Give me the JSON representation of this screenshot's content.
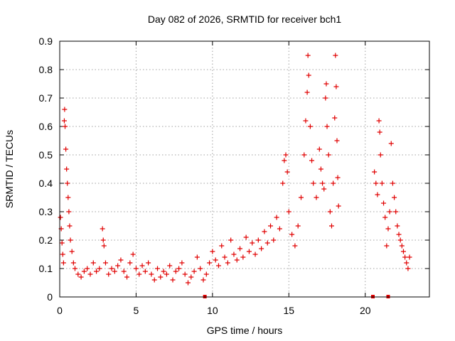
{
  "chart_data": {
    "type": "scatter",
    "title": "Day 082 of 2026, SRMTID for receiver bch1",
    "xlabel": "GPS time / hours",
    "ylabel": "SRMTID / TECUs",
    "xlim": [
      0,
      24.2
    ],
    "ylim": [
      0,
      0.9
    ],
    "xticks": [
      0,
      5,
      10,
      15,
      20
    ],
    "yticks": [
      0,
      0.1,
      0.2,
      0.3,
      0.4,
      0.5,
      0.6,
      0.7,
      0.8,
      0.9
    ],
    "xtick_labels": [
      "0",
      "5",
      "10",
      "15",
      "20"
    ],
    "ytick_labels": [
      "0",
      "0.1",
      "0.2",
      "0.3",
      "0.4",
      "0.5",
      "0.6",
      "0.7",
      "0.8",
      "0.9"
    ],
    "grid": true,
    "marker": "+",
    "color": "#e00000",
    "series": [
      {
        "name": "bch1",
        "points": [
          [
            0.05,
            0.28
          ],
          [
            0.1,
            0.24
          ],
          [
            0.15,
            0.19
          ],
          [
            0.2,
            0.15
          ],
          [
            0.25,
            0.12
          ],
          [
            0.3,
            0.62
          ],
          [
            0.32,
            0.66
          ],
          [
            0.35,
            0.6
          ],
          [
            0.4,
            0.52
          ],
          [
            0.45,
            0.45
          ],
          [
            0.5,
            0.4
          ],
          [
            0.55,
            0.35
          ],
          [
            0.6,
            0.3
          ],
          [
            0.65,
            0.25
          ],
          [
            0.7,
            0.2
          ],
          [
            0.8,
            0.16
          ],
          [
            0.9,
            0.12
          ],
          [
            1.0,
            0.1
          ],
          [
            1.2,
            0.08
          ],
          [
            1.4,
            0.07
          ],
          [
            1.6,
            0.09
          ],
          [
            1.8,
            0.1
          ],
          [
            2.0,
            0.08
          ],
          [
            2.2,
            0.12
          ],
          [
            2.4,
            0.09
          ],
          [
            2.6,
            0.1
          ],
          [
            2.8,
            0.24
          ],
          [
            2.85,
            0.2
          ],
          [
            2.9,
            0.18
          ],
          [
            3.0,
            0.12
          ],
          [
            3.2,
            0.08
          ],
          [
            3.4,
            0.1
          ],
          [
            3.6,
            0.09
          ],
          [
            3.8,
            0.11
          ],
          [
            4.0,
            0.13
          ],
          [
            4.2,
            0.09
          ],
          [
            4.4,
            0.07
          ],
          [
            4.6,
            0.12
          ],
          [
            4.8,
            0.15
          ],
          [
            5.0,
            0.1
          ],
          [
            5.2,
            0.08
          ],
          [
            5.4,
            0.11
          ],
          [
            5.6,
            0.09
          ],
          [
            5.8,
            0.12
          ],
          [
            6.0,
            0.08
          ],
          [
            6.2,
            0.06
          ],
          [
            6.4,
            0.1
          ],
          [
            6.6,
            0.07
          ],
          [
            6.8,
            0.09
          ],
          [
            7.0,
            0.08
          ],
          [
            7.2,
            0.11
          ],
          [
            7.4,
            0.06
          ],
          [
            7.6,
            0.09
          ],
          [
            7.8,
            0.1
          ],
          [
            8.0,
            0.12
          ],
          [
            8.2,
            0.08
          ],
          [
            8.4,
            0.05
          ],
          [
            8.6,
            0.07
          ],
          [
            8.8,
            0.09
          ],
          [
            9.0,
            0.14
          ],
          [
            9.2,
            0.1
          ],
          [
            9.4,
            0.06
          ],
          [
            9.6,
            0.08
          ],
          [
            9.8,
            0.12
          ],
          [
            10.0,
            0.16
          ],
          [
            10.2,
            0.13
          ],
          [
            10.4,
            0.11
          ],
          [
            10.6,
            0.18
          ],
          [
            10.8,
            0.14
          ],
          [
            11.0,
            0.12
          ],
          [
            11.2,
            0.2
          ],
          [
            11.4,
            0.15
          ],
          [
            11.6,
            0.13
          ],
          [
            11.8,
            0.17
          ],
          [
            12.0,
            0.14
          ],
          [
            12.2,
            0.21
          ],
          [
            12.4,
            0.16
          ],
          [
            12.6,
            0.19
          ],
          [
            12.8,
            0.15
          ],
          [
            13.0,
            0.2
          ],
          [
            13.2,
            0.17
          ],
          [
            13.4,
            0.23
          ],
          [
            13.6,
            0.19
          ],
          [
            13.8,
            0.25
          ],
          [
            14.0,
            0.2
          ],
          [
            14.2,
            0.28
          ],
          [
            14.4,
            0.24
          ],
          [
            14.6,
            0.4
          ],
          [
            14.7,
            0.48
          ],
          [
            14.8,
            0.5
          ],
          [
            14.9,
            0.44
          ],
          [
            15.0,
            0.3
          ],
          [
            15.2,
            0.22
          ],
          [
            15.4,
            0.18
          ],
          [
            15.6,
            0.25
          ],
          [
            15.8,
            0.35
          ],
          [
            16.0,
            0.5
          ],
          [
            16.1,
            0.62
          ],
          [
            16.2,
            0.72
          ],
          [
            16.25,
            0.85
          ],
          [
            16.3,
            0.78
          ],
          [
            16.4,
            0.6
          ],
          [
            16.5,
            0.48
          ],
          [
            16.6,
            0.4
          ],
          [
            16.8,
            0.35
          ],
          [
            17.0,
            0.52
          ],
          [
            17.1,
            0.45
          ],
          [
            17.2,
            0.4
          ],
          [
            17.3,
            0.38
          ],
          [
            17.4,
            0.7
          ],
          [
            17.45,
            0.75
          ],
          [
            17.5,
            0.6
          ],
          [
            17.6,
            0.5
          ],
          [
            17.7,
            0.3
          ],
          [
            17.8,
            0.25
          ],
          [
            17.9,
            0.4
          ],
          [
            18.0,
            0.63
          ],
          [
            18.05,
            0.85
          ],
          [
            18.1,
            0.74
          ],
          [
            18.15,
            0.55
          ],
          [
            18.2,
            0.42
          ],
          [
            18.25,
            0.32
          ],
          [
            20.6,
            0.44
          ],
          [
            20.7,
            0.4
          ],
          [
            20.8,
            0.36
          ],
          [
            20.9,
            0.62
          ],
          [
            20.95,
            0.58
          ],
          [
            21.0,
            0.5
          ],
          [
            21.1,
            0.4
          ],
          [
            21.2,
            0.33
          ],
          [
            21.3,
            0.28
          ],
          [
            21.4,
            0.18
          ],
          [
            21.5,
            0.24
          ],
          [
            21.6,
            0.3
          ],
          [
            21.7,
            0.54
          ],
          [
            21.8,
            0.4
          ],
          [
            21.9,
            0.35
          ],
          [
            22.0,
            0.3
          ],
          [
            22.1,
            0.25
          ],
          [
            22.2,
            0.22
          ],
          [
            22.3,
            0.2
          ],
          [
            22.4,
            0.18
          ],
          [
            22.5,
            0.16
          ],
          [
            22.6,
            0.14
          ],
          [
            22.7,
            0.12
          ],
          [
            22.8,
            0.1
          ],
          [
            22.9,
            0.14
          ]
        ]
      }
    ],
    "axis_markers": [
      9.5,
      20.5,
      21.5
    ]
  }
}
